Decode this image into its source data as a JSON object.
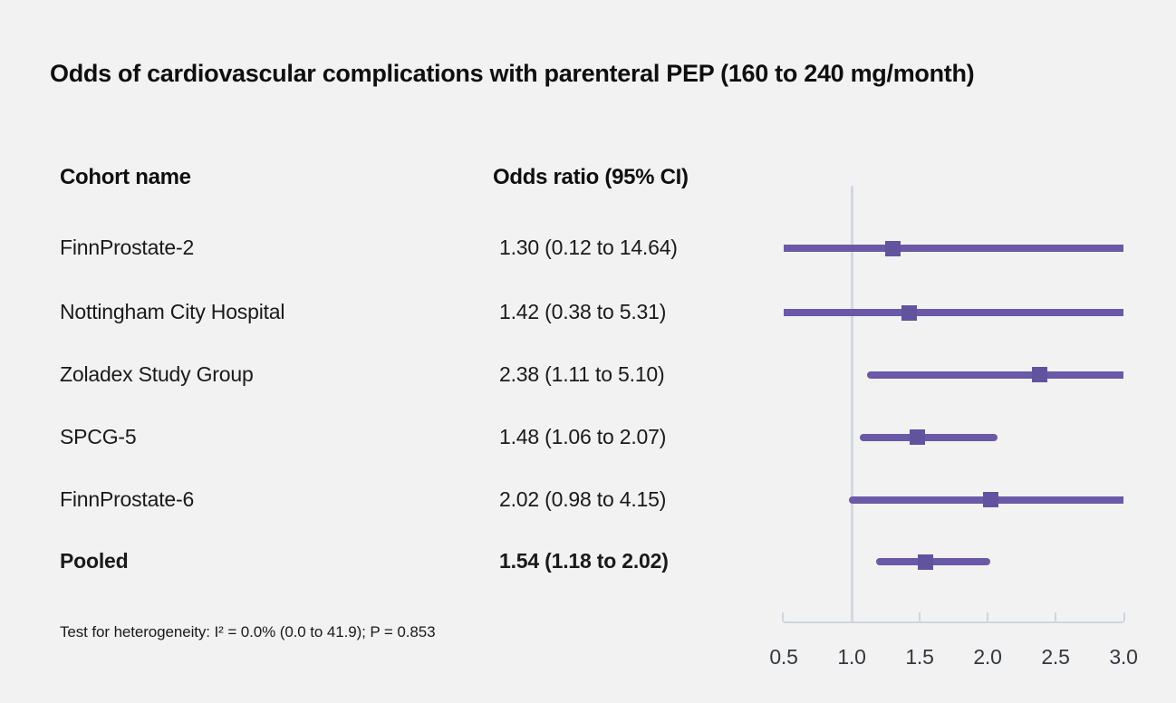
{
  "title": "Odds of cardiovascular complications with parenteral PEP (160 to 240 mg/month)",
  "table": {
    "col_cohort": "Cohort name",
    "col_or": "Odds ratio (95% CI)"
  },
  "rows": [
    {
      "name": "FinnProstate-2",
      "or_text": "1.30 (0.12 to 14.64)"
    },
    {
      "name": "Nottingham City Hospital",
      "or_text": "1.42 (0.38 to 5.31)"
    },
    {
      "name": "Zoladex Study Group",
      "or_text": "2.38 (1.11 to 5.10)"
    },
    {
      "name": "SPCG-5",
      "or_text": "1.48 (1.06 to 2.07)"
    },
    {
      "name": "FinnProstate-6",
      "or_text": "2.02 (0.98 to 4.15)"
    },
    {
      "name": "Pooled",
      "or_text": "1.54 (1.18 to 2.02)"
    }
  ],
  "footnote": "Test for heterogeneity: I² = 0.0% (0.0 to 41.9); P = 0.853",
  "chart_data": {
    "type": "forest",
    "title": "Odds of cardiovascular complications with parenteral PEP (160 to 240 mg/month)",
    "xlim": [
      0.5,
      3.0
    ],
    "ticks": [
      0.5,
      1.0,
      1.5,
      2.0,
      2.5,
      3.0
    ],
    "tick_labels": [
      "0.5",
      "1.0",
      "1.5",
      "2.0",
      "2.5",
      "3.0"
    ],
    "reference_line": 1.0,
    "series": [
      {
        "name": "FinnProstate-2",
        "or": 1.3,
        "ci_low": 0.12,
        "ci_high": 14.64,
        "pooled": false
      },
      {
        "name": "Nottingham City Hospital",
        "or": 1.42,
        "ci_low": 0.38,
        "ci_high": 5.31,
        "pooled": false
      },
      {
        "name": "Zoladex Study Group",
        "or": 2.38,
        "ci_low": 1.11,
        "ci_high": 5.1,
        "pooled": false
      },
      {
        "name": "SPCG-5",
        "or": 1.48,
        "ci_low": 1.06,
        "ci_high": 2.07,
        "pooled": false
      },
      {
        "name": "FinnProstate-6",
        "or": 2.02,
        "ci_low": 0.98,
        "ci_high": 4.15,
        "pooled": false
      },
      {
        "name": "Pooled",
        "or": 1.54,
        "ci_low": 1.18,
        "ci_high": 2.02,
        "pooled": true
      }
    ],
    "colors": {
      "background": "#f2f2f2",
      "ci_line": "#6a59a6",
      "marker": "#62539f",
      "reference_line": "#d3d8e2",
      "axis": "#d0d5dd",
      "tick_label": "#34373c"
    }
  }
}
